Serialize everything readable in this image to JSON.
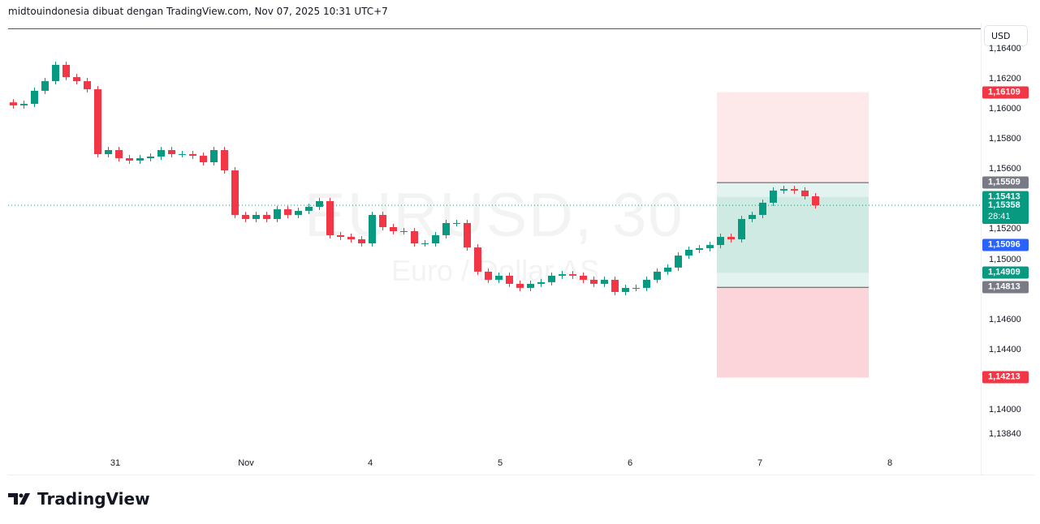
{
  "header": {
    "text": "midtouindonesia dibuat dengan TradingView.com, Nov 07, 2025 10:31 UTC+7"
  },
  "watermark": {
    "symbol": "EURUSD, 30",
    "description": "Euro / Dollar AS"
  },
  "currency_button": "USD",
  "logo": "TradingView",
  "chart_data": {
    "type": "candlestick",
    "symbol": "EURUSD",
    "interval": "30",
    "closes": [
      1.16022,
      1.16032,
      1.16119,
      1.16183,
      1.16291,
      1.1621,
      1.16183,
      1.16129,
      1.15698,
      1.15725,
      1.15671,
      1.15655,
      1.15671,
      1.15682,
      1.15725,
      1.15698,
      1.15698,
      1.15687,
      1.15644,
      1.15725,
      1.1559,
      1.15294,
      1.15267,
      1.15294,
      1.15267,
      1.15332,
      1.15294,
      1.15321,
      1.15348,
      1.15386,
      1.15159,
      1.15148,
      1.15132,
      1.15105,
      1.15294,
      1.15213,
      1.15186,
      1.15186,
      1.15105,
      1.15105,
      1.15159,
      1.1524,
      1.1524,
      1.15078,
      1.14917,
      1.14863,
      1.1489,
      1.14836,
      1.14809,
      1.14836,
      1.14847,
      1.1489,
      1.149,
      1.1489,
      1.14863,
      1.14836,
      1.14863,
      1.14782,
      1.14809,
      1.14809,
      1.14863,
      1.14917,
      1.14944,
      1.15024,
      1.15062,
      1.15073,
      1.15094,
      1.15148,
      1.15132,
      1.15267,
      1.15294,
      1.15375,
      1.15456,
      1.15466,
      1.15456,
      1.15418,
      1.15358
    ],
    "x_tick_labels": [
      "31",
      "Nov",
      "4",
      "5",
      "6",
      "7",
      "8"
    ],
    "y_tick_labels": [
      "1,16400",
      "1,16200",
      "1,16000",
      "1,15800",
      "1,15600",
      "1,15200",
      "1,15000",
      "1,14600",
      "1,14400",
      "1,14000",
      "1,13840"
    ],
    "y_ticks": [
      1.164,
      1.162,
      1.16,
      1.158,
      1.156,
      1.152,
      1.15,
      1.146,
      1.144,
      1.14,
      1.1384
    ],
    "ylim": [
      1.1376,
      1.1655
    ],
    "last_price": 1.15358,
    "countdown": "28:41",
    "colors": {
      "up": "#089981",
      "down": "#f23645",
      "last_line": "#089981"
    },
    "position_tool": {
      "entry": 1.15509,
      "stop": 1.14813,
      "target_up": 1.16109,
      "target_down": 1.14213,
      "inner_top": 1.15413,
      "inner_bottom": 1.14909
    },
    "price_badges": [
      {
        "label": "1,16109",
        "value": 1.16109,
        "color": "#f23645"
      },
      {
        "label": "1,15509",
        "value": 1.15509,
        "color": "#787b86"
      },
      {
        "label": "1,15413",
        "value": 1.15413,
        "color": "#089981"
      },
      {
        "label": "1,15358",
        "value": 1.15358,
        "color": "#089981"
      },
      {
        "label": "1,15096",
        "value": 1.15096,
        "color": "#2962ff"
      },
      {
        "label": "1,14909",
        "value": 1.14909,
        "color": "#089981"
      },
      {
        "label": "1,14813",
        "value": 1.14813,
        "color": "#787b86"
      },
      {
        "label": "1,14213",
        "value": 1.14213,
        "color": "#f23645"
      }
    ]
  }
}
